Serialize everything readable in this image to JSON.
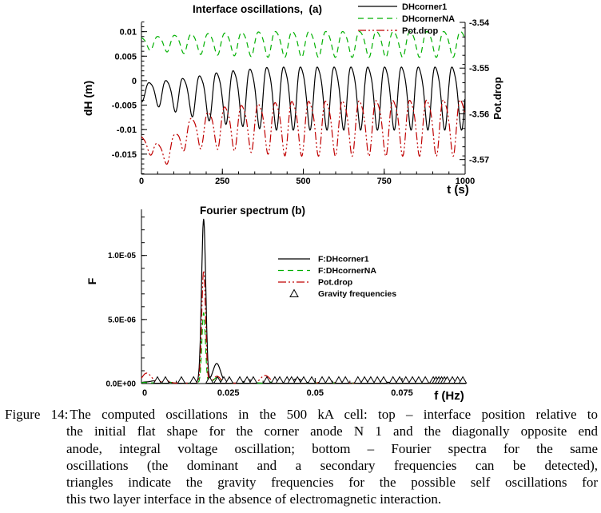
{
  "figure": {
    "caption": {
      "label": "Figure 14:",
      "lines": [
        "The computed oscillations in the 500 kA cell: top – interface position relative to",
        "the initial flat shape for the corner anode N 1 and the diagonally opposite end",
        "anode, integral voltage oscillation; bottom – Fourier spectra for the same",
        "oscillations (the dominant and a secondary frequencies can be detected),",
        "triangles indicate the gravity frequencies for the possible self oscillations for",
        "this two layer interface in the absence of electromagnetic interaction."
      ]
    }
  },
  "colors": {
    "black": "#000000",
    "green": "#00b000",
    "red": "#c00000"
  },
  "chart_data": [
    {
      "id": "interface-oscillations",
      "type": "line",
      "title": "Interface oscillations,  (a)",
      "xlabel": "t (s)",
      "ylabel_left": "dH (m)",
      "ylabel_right": "Pot.drop",
      "xlim": [
        0,
        1000
      ],
      "ylim_left": [
        -0.0191,
        0.0119
      ],
      "ylim_right": [
        -3.5732,
        -3.54
      ],
      "xticks": [
        0,
        250,
        500,
        750,
        1000
      ],
      "xtick_labels": [
        "0",
        "250",
        "500",
        "750",
        "1000"
      ],
      "xminor_step": 50,
      "yticks_left": [
        0.01,
        0.005,
        0,
        -0.005,
        -0.01,
        -0.015
      ],
      "ytick_labels_left": [
        "0.01",
        "0.005",
        "0",
        "-0.005",
        "-0.01",
        "-0.015"
      ],
      "yminor_step_left": 0.001,
      "yticks_right": [
        -3.54,
        -3.55,
        -3.56,
        -3.57
      ],
      "ytick_labels_right": [
        "-3.54",
        "-3.55",
        "-3.56",
        "-3.57"
      ],
      "yminor_step_right": 0.002,
      "legend": [
        "DHcorner1",
        "DHcornerNA",
        "Pot.drop"
      ],
      "dominant_frequency_hz": 0.0179,
      "series": [
        {
          "name": "DHcorner1",
          "color": "black",
          "dash": "",
          "axis": "left",
          "period_s": 52,
          "phase_t0": 65,
          "harmonic2": 0.18,
          "mean_keyframes": [
            [
              0,
              -0.0022
            ],
            [
              150,
              -0.0028
            ],
            [
              1000,
              -0.0028
            ]
          ],
          "amp_keyframes": [
            [
              0,
              0.0018
            ],
            [
              100,
              0.0032
            ],
            [
              250,
              0.0052
            ],
            [
              400,
              0.0063
            ],
            [
              1000,
              0.0063
            ]
          ]
        },
        {
          "name": "DHcornerNA",
          "color": "green",
          "dash": "7 5",
          "axis": "left",
          "period_s": 52,
          "phase_t0": 39,
          "harmonic2": 0.15,
          "mean_keyframes": [
            [
              0,
              0.0077
            ],
            [
              1000,
              0.0077
            ]
          ],
          "amp_keyframes": [
            [
              0,
              0.0012
            ],
            [
              150,
              0.002
            ],
            [
              400,
              0.0026
            ],
            [
              1000,
              0.0026
            ]
          ]
        },
        {
          "name": "Pot.drop",
          "color": "red",
          "dash": "10 3 2 3 2 3",
          "axis": "right",
          "period_s": 52,
          "phase_t0": 39,
          "harmonic2": 0.2,
          "mean_keyframes": [
            [
              0,
              -3.566
            ],
            [
              70,
              -3.569
            ],
            [
              140,
              -3.564
            ],
            [
              250,
              -3.5625
            ],
            [
              1000,
              -3.5622
            ]
          ],
          "amp_keyframes": [
            [
              0,
              0.0012
            ],
            [
              100,
              0.0025
            ],
            [
              250,
              0.0045
            ],
            [
              450,
              0.0058
            ],
            [
              1000,
              0.006
            ]
          ]
        }
      ]
    },
    {
      "id": "fourier-spectrum",
      "type": "line",
      "title": "Fourier spectrum (b)",
      "xlabel": "f (Hz)",
      "ylabel": "F",
      "xlim": [
        0,
        0.0934
      ],
      "ylim": [
        0,
        1.36e-05
      ],
      "xticks": [
        0,
        0.025,
        0.05,
        0.075
      ],
      "xtick_labels": [
        "0",
        "0.025",
        "0.05",
        "0.075"
      ],
      "xminor_step": 0.005,
      "yticks": [
        0,
        5e-06,
        1e-05
      ],
      "ytick_labels": [
        "0.0E+00",
        "5.0E-06",
        "1.0E-05"
      ],
      "yminor_step": 1e-06,
      "legend": [
        "F:DHcorner1",
        "F:DHcornerNA",
        "Pot.drop"
      ],
      "gravity_legend_label": "Gravity frequencies",
      "dominant_frequency_hz": 0.0179,
      "secondary_frequency_hz": 0.0216,
      "series": [
        {
          "name": "F:DHcorner1",
          "color": "black",
          "dash": "",
          "peaks": [
            [
              0.0179,
              1.28e-05,
              0.0006
            ],
            [
              0.0216,
              1.5e-06,
              0.0011
            ],
            [
              0.0312,
              2.5e-07,
              0.001
            ],
            [
              0.0452,
              3e-07,
              0.0015
            ],
            [
              0.0035,
              1.5e-07,
              0.0015
            ]
          ]
        },
        {
          "name": "F:DHcornerNA",
          "color": "green",
          "dash": "7 5",
          "peaks": [
            [
              0.0179,
              5.5e-06,
              0.0005
            ],
            [
              0.0216,
              4e-07,
              0.001
            ]
          ]
        },
        {
          "name": "Pot.drop",
          "color": "red",
          "dash": "10 3 2 3 2 3",
          "peaks": [
            [
              0.0016,
              7.5e-07,
              0.0013
            ],
            [
              0.0179,
              8.8e-06,
              0.00055
            ],
            [
              0.0216,
              5e-07,
              0.001
            ],
            [
              0.0355,
              6e-07,
              0.0012
            ],
            [
              0.0065,
              2e-07,
              0.001
            ]
          ]
        }
      ],
      "gravity_frequencies": [
        0.0046,
        0.0069,
        0.0115,
        0.015,
        0.0196,
        0.0219,
        0.0237,
        0.0253,
        0.0283,
        0.0304,
        0.0322,
        0.0361,
        0.0384,
        0.0398,
        0.0419,
        0.0432,
        0.0449,
        0.0467,
        0.049,
        0.052,
        0.054,
        0.0568,
        0.0587,
        0.0623,
        0.0642,
        0.066,
        0.0679,
        0.0697,
        0.0724,
        0.0743,
        0.0761,
        0.078,
        0.0798,
        0.0817,
        0.084,
        0.0848,
        0.0856,
        0.0864,
        0.0872,
        0.088,
        0.0895,
        0.091,
        0.0925
      ]
    }
  ]
}
